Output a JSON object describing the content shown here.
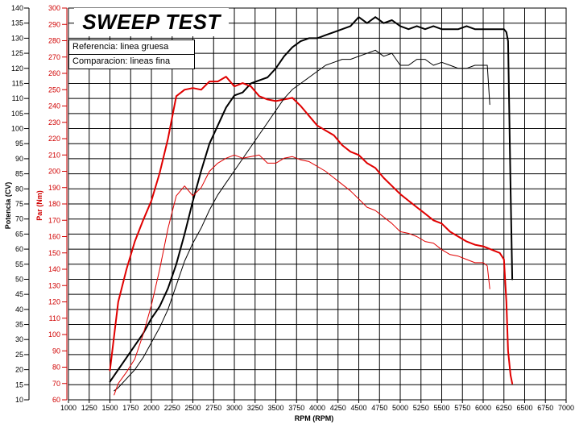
{
  "chart_data": {
    "type": "line",
    "title": "SWEEP TEST",
    "xlabel": "RPM (RPM)",
    "ylabel_left": "Potencia (CV)",
    "ylabel_right": "Par (Nm)",
    "legend": [
      "Referencia: linea gruesa",
      "Comparacion: lineas fina"
    ],
    "legend_position": "top-left",
    "grid": true,
    "xlim": [
      1000,
      7000
    ],
    "x_ticks": [
      1000,
      1250,
      1500,
      1750,
      2000,
      2250,
      2500,
      2750,
      3000,
      3250,
      3500,
      3750,
      4000,
      4250,
      4500,
      4750,
      5000,
      5250,
      5500,
      5750,
      6000,
      6250,
      6500,
      6750,
      7000
    ],
    "ylim_power": [
      10,
      140
    ],
    "power_ticks": [
      10,
      15,
      20,
      25,
      30,
      35,
      40,
      45,
      50,
      55,
      60,
      65,
      70,
      75,
      80,
      85,
      90,
      95,
      100,
      105,
      110,
      115,
      120,
      125,
      130,
      135,
      140
    ],
    "ylim_torque": [
      60,
      300
    ],
    "torque_ticks": [
      60,
      70,
      80,
      90,
      100,
      110,
      120,
      130,
      140,
      150,
      160,
      170,
      180,
      190,
      200,
      210,
      220,
      230,
      240,
      250,
      260,
      270,
      280,
      290,
      300
    ],
    "colors": {
      "power": "#000000",
      "torque": "#e00000"
    },
    "series": [
      {
        "role": "Potencia referencia",
        "axis": "power",
        "weight": "thick",
        "x": [
          1500,
          1600,
          1700,
          1800,
          1900,
          2000,
          2100,
          2200,
          2300,
          2400,
          2500,
          2600,
          2700,
          2800,
          2900,
          3000,
          3100,
          3200,
          3300,
          3400,
          3500,
          3600,
          3700,
          3800,
          3900,
          4000,
          4100,
          4200,
          4300,
          4400,
          4500,
          4600,
          4700,
          4800,
          4900,
          5000,
          5100,
          5200,
          5300,
          5400,
          5500,
          5600,
          5700,
          5800,
          5900,
          6000,
          6100,
          6200,
          6250,
          6280,
          6300,
          6330,
          6350
        ],
        "y": [
          16,
          20,
          24,
          28,
          32,
          37,
          41,
          47,
          55,
          65,
          76,
          86,
          95,
          101,
          107,
          111,
          112,
          115,
          116,
          117,
          120,
          124,
          127,
          129,
          130,
          130,
          131,
          132,
          133,
          134,
          137,
          135,
          137,
          135,
          136,
          134,
          133,
          134,
          133,
          134,
          133,
          133,
          133,
          134,
          133,
          133,
          133,
          133,
          133,
          132,
          129,
          80,
          50
        ]
      },
      {
        "role": "Par referencia",
        "axis": "torque",
        "weight": "thick",
        "x": [
          1500,
          1600,
          1700,
          1800,
          1900,
          2000,
          2100,
          2200,
          2300,
          2400,
          2500,
          2600,
          2700,
          2800,
          2900,
          3000,
          3100,
          3200,
          3300,
          3400,
          3500,
          3600,
          3700,
          3800,
          3900,
          4000,
          4100,
          4200,
          4300,
          4400,
          4500,
          4600,
          4700,
          4800,
          4900,
          5000,
          5100,
          5200,
          5300,
          5400,
          5500,
          5600,
          5700,
          5800,
          5900,
          6000,
          6100,
          6200,
          6250,
          6280,
          6300,
          6330,
          6350
        ],
        "y": [
          78,
          120,
          140,
          157,
          170,
          182,
          199,
          220,
          246,
          250,
          251,
          250,
          255,
          255,
          258,
          252,
          254,
          252,
          246,
          244,
          243,
          244,
          245,
          240,
          234,
          228,
          225,
          222,
          216,
          212,
          210,
          205,
          202,
          196,
          191,
          186,
          182,
          178,
          174,
          170,
          168,
          163,
          160,
          157,
          155,
          154,
          152,
          150,
          146,
          120,
          90,
          75,
          70
        ]
      },
      {
        "role": "Potencia comparacion",
        "axis": "power",
        "weight": "thin",
        "x": [
          1550,
          1600,
          1700,
          1800,
          1900,
          2000,
          2100,
          2200,
          2300,
          2400,
          2500,
          2600,
          2700,
          2800,
          2900,
          3000,
          3100,
          3200,
          3300,
          3400,
          3500,
          3600,
          3700,
          3800,
          3900,
          4000,
          4100,
          4200,
          4300,
          4400,
          4500,
          4600,
          4700,
          4800,
          4900,
          5000,
          5100,
          5200,
          5300,
          5400,
          5500,
          5600,
          5700,
          5800,
          5900,
          6000,
          6050,
          6080
        ],
        "y": [
          13,
          14,
          17,
          20,
          24,
          29,
          34,
          40,
          48,
          56,
          62,
          67,
          73,
          78,
          82,
          86,
          90,
          94,
          98,
          102,
          106,
          110,
          113,
          115,
          117,
          119,
          121,
          122,
          123,
          123,
          124,
          125,
          126,
          124,
          125,
          121,
          121,
          123,
          123,
          121,
          122,
          121,
          120,
          120,
          121,
          121,
          121,
          108
        ]
      },
      {
        "role": "Par comparacion",
        "axis": "torque",
        "weight": "thin",
        "x": [
          1550,
          1600,
          1700,
          1800,
          1900,
          2000,
          2100,
          2200,
          2300,
          2400,
          2500,
          2600,
          2700,
          2800,
          2900,
          3000,
          3100,
          3200,
          3300,
          3400,
          3500,
          3600,
          3700,
          3800,
          3900,
          4000,
          4100,
          4200,
          4300,
          4400,
          4500,
          4600,
          4700,
          4800,
          4900,
          5000,
          5100,
          5200,
          5300,
          5400,
          5500,
          5600,
          5700,
          5800,
          5900,
          6000,
          6050,
          6080
        ],
        "y": [
          63,
          70,
          77,
          85,
          100,
          118,
          140,
          165,
          185,
          191,
          185,
          190,
          200,
          205,
          208,
          210,
          208,
          209,
          210,
          205,
          205,
          208,
          209,
          207,
          206,
          203,
          200,
          196,
          192,
          188,
          183,
          178,
          176,
          172,
          168,
          163,
          162,
          160,
          157,
          156,
          152,
          149,
          148,
          146,
          144,
          144,
          142,
          128
        ]
      }
    ]
  }
}
